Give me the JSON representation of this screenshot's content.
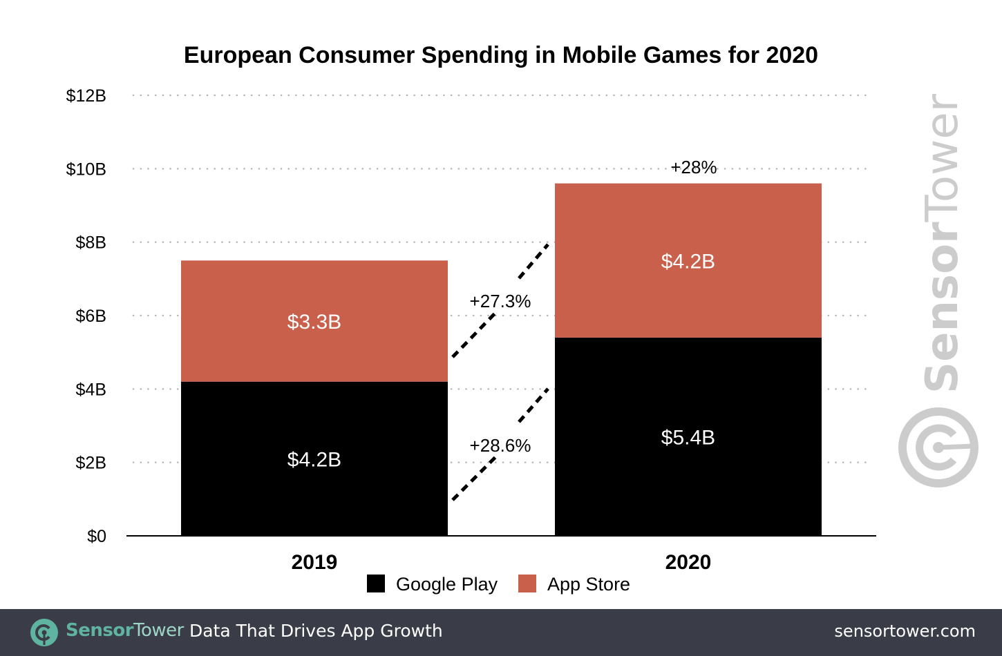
{
  "chart_data": {
    "type": "bar",
    "stacked": true,
    "title": "European Consumer Spending in Mobile Games for 2020",
    "xlabel": "",
    "ylabel": "",
    "categories": [
      "2019",
      "2020"
    ],
    "series": [
      {
        "name": "Google Play",
        "color": "#000000",
        "values": [
          4.2,
          5.4
        ],
        "labels": [
          "$4.2B",
          "$5.4B"
        ]
      },
      {
        "name": "App Store",
        "color": "#c9604c",
        "values": [
          3.3,
          4.2
        ],
        "labels": [
          "$3.3B",
          "$4.2B"
        ]
      }
    ],
    "ylim": [
      0,
      12
    ],
    "yticks": [
      0,
      2,
      4,
      6,
      8,
      10,
      12
    ],
    "ytick_labels": [
      "$0",
      "$2B",
      "$4B",
      "$6B",
      "$8B",
      "$10B",
      "$12B"
    ],
    "grid": "horizontal-dotted",
    "legend": {
      "placement": "bottom-center",
      "entries": [
        "Google Play",
        "App Store"
      ]
    },
    "annotations": [
      {
        "text": "+28%",
        "target": "2020 total"
      },
      {
        "text": "+27.3%",
        "target": "App Store growth"
      },
      {
        "text": "+28.6%",
        "target": "Google Play growth"
      }
    ]
  },
  "watermark": {
    "sensor": "Sensor",
    "tower": "Tower",
    "icon": "sensortower-logo-icon"
  },
  "footer": {
    "brand_sensor": "Sensor",
    "brand_tower": "Tower",
    "tagline": "Data That Drives App Growth",
    "url": "sensortower.com",
    "logo_icon": "sensortower-logo-icon",
    "background": "#3a3d47",
    "accent": "#5fb3a1"
  }
}
